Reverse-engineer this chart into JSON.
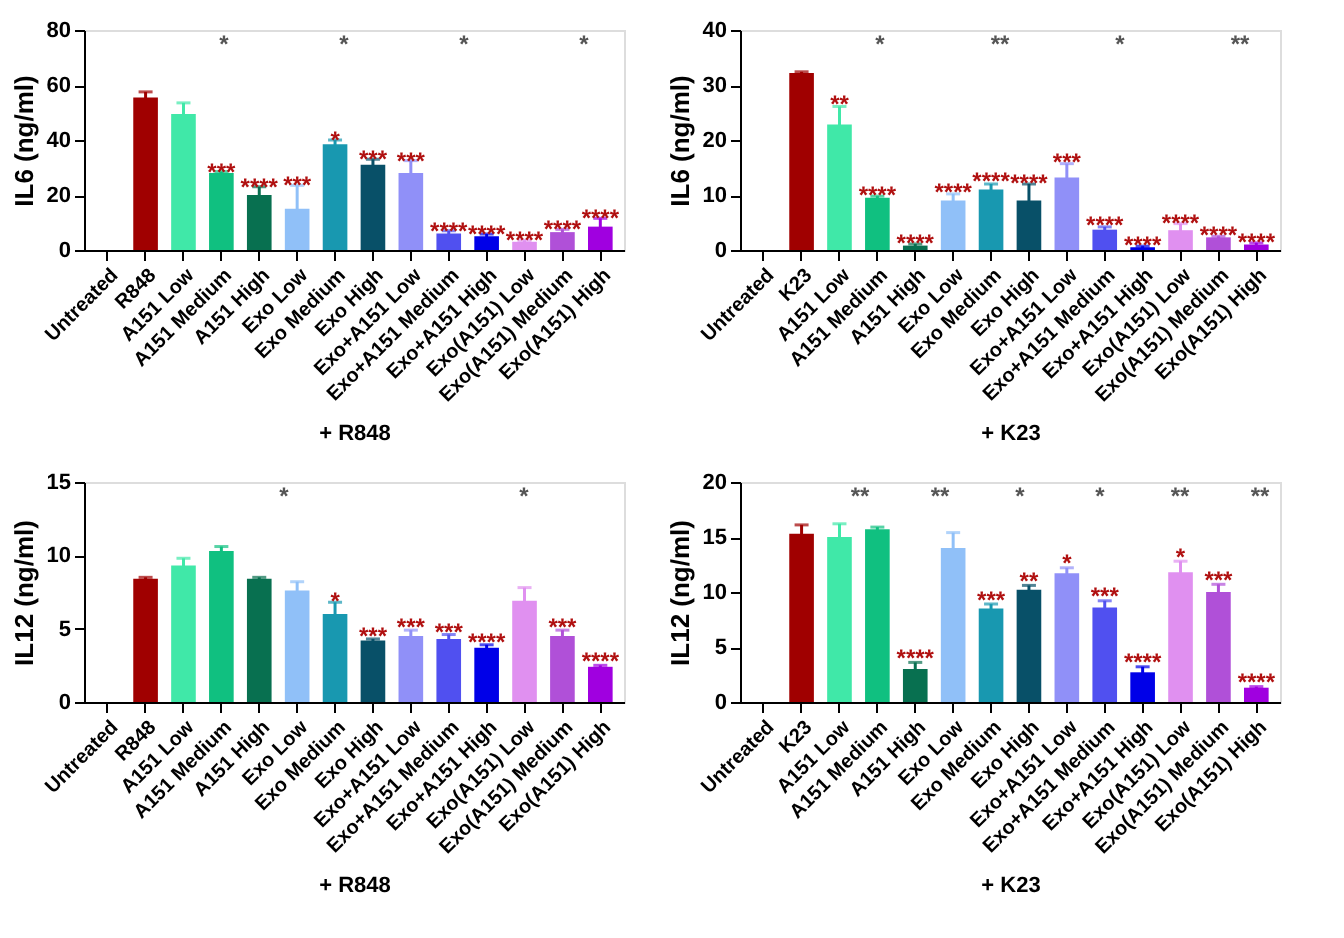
{
  "chart_data": [
    {
      "type": "bar",
      "xlabel": "+ R848",
      "ylabel": "IL6 (ng/ml)",
      "ylim": [
        0,
        80
      ],
      "yticks": [
        0,
        20,
        40,
        60,
        80
      ],
      "grid": false,
      "categories": [
        "Untreated",
        "R848",
        "A151 Low",
        "A151 Medium",
        "A151 High",
        "Exo Low",
        "Exo Medium",
        "Exo High",
        "Exo+A151 Low",
        "Exo+A151 Medium",
        "Exo+A151 High",
        "Exo(A151) Low",
        "Exo(A151) Medium",
        "Exo(A151) High"
      ],
      "values": [
        0,
        55.5,
        49.5,
        28,
        20,
        15,
        38.5,
        31,
        28,
        6,
        5,
        3,
        6.5,
        8.5
      ],
      "errors": [
        null,
        2,
        4,
        0.5,
        3,
        8.5,
        1.5,
        2,
        4.5,
        1,
        0.8,
        0.5,
        1,
        3
      ],
      "colors": [
        "#000000",
        "#a00000",
        "#40e8a8",
        "#10c080",
        "#087050",
        "#90c0f8",
        "#1898b0",
        "#085068",
        "#9090f8",
        "#5050f0",
        "#0000e8",
        "#e090f0",
        "#b050d8",
        "#a000e0"
      ],
      "annotations": [
        {
          "text": "***",
          "x": "A151 Medium",
          "y": 28.5
        },
        {
          "text": "****",
          "x": "A151 High",
          "y": 23
        },
        {
          "text": "***",
          "x": "Exo Low",
          "y": 23.5
        },
        {
          "text": "*",
          "x": "Exo Medium",
          "y": 40
        },
        {
          "text": "***",
          "x": "Exo High",
          "y": 33
        },
        {
          "text": "***",
          "x": "Exo+A151 Low",
          "y": 32.5
        },
        {
          "text": "****",
          "x": "Exo+A151 Medium",
          "y": 7
        },
        {
          "text": "****",
          "x": "Exo+A151 High",
          "y": 5.8
        },
        {
          "text": "****",
          "x": "Exo(A151) Low",
          "y": 3.5
        },
        {
          "text": "****",
          "x": "Exo(A151) Medium",
          "y": 7.5
        },
        {
          "text": "****",
          "x": "Exo(A151) High",
          "y": 11.5
        },
        "*",
        "*",
        "*",
        "*"
      ]
    },
    {
      "type": "bar",
      "xlabel": "+ K23",
      "ylabel": "IL6 (ng/ml)",
      "ylim": [
        0,
        40
      ],
      "yticks": [
        0,
        10,
        20,
        30,
        40
      ],
      "grid": false,
      "categories": [
        "Untreated",
        "K23",
        "A151 Low",
        "A151 Medium",
        "A151 High",
        "Exo Low",
        "Exo Medium",
        "Exo High",
        "Exo+A151 Low",
        "Exo+A151 Medium",
        "Exo+A151 High",
        "Exo(A151) Low",
        "Exo(A151) Medium",
        "Exo(A151) High"
      ],
      "values": [
        0,
        32.2,
        22.8,
        9.5,
        0.8,
        9,
        11,
        9,
        13.2,
        3.7,
        0.5,
        3.6,
        2.3,
        1
      ],
      "errors": [
        null,
        0.2,
        3.3,
        0.3,
        0.3,
        1.2,
        1,
        3,
        2.5,
        0.5,
        0.2,
        1.2,
        0.2,
        0.3
      ],
      "colors": [
        "#000000",
        "#a00000",
        "#40e8a8",
        "#10c080",
        "#087050",
        "#90c0f8",
        "#1898b0",
        "#085068",
        "#9090f8",
        "#5050f0",
        "#0000e8",
        "#e090f0",
        "#b050d8",
        "#a000e0"
      ],
      "annotations": [
        {
          "text": "**",
          "x": "A151 Low",
          "y": 26.5
        },
        {
          "text": "****",
          "x": "A151 Medium",
          "y": 10
        },
        {
          "text": "****",
          "x": "A151 High",
          "y": 1.3
        },
        {
          "text": "****",
          "x": "Exo Low",
          "y": 10.5
        },
        {
          "text": "****",
          "x": "Exo Medium",
          "y": 12.5
        },
        {
          "text": "****",
          "x": "Exo High",
          "y": 12.2
        },
        {
          "text": "***",
          "x": "Exo+A151 Low",
          "y": 16
        },
        {
          "text": "****",
          "x": "Exo+A151 Medium",
          "y": 4.5
        },
        {
          "text": "****",
          "x": "Exo+A151 High",
          "y": 1
        },
        {
          "text": "****",
          "x": "Exo(A151) Low",
          "y": 5
        },
        {
          "text": "****",
          "x": "Exo(A151) Medium",
          "y": 2.8
        },
        {
          "text": "****",
          "x": "Exo(A151) High",
          "y": 1.5
        },
        "*",
        "**",
        "*",
        "**"
      ]
    },
    {
      "type": "bar",
      "xlabel": "+ R848",
      "ylabel": "IL12 (ng/ml)",
      "ylim": [
        0,
        15
      ],
      "yticks": [
        0,
        5,
        10,
        15
      ],
      "grid": false,
      "categories": [
        "Untreated",
        "R848",
        "A151 Low",
        "A151 Medium",
        "A151 High",
        "Exo Low",
        "Exo Medium",
        "Exo High",
        "Exo+A151 Low",
        "Exo+A151 Medium",
        "Exo+A151 High",
        "Exo(A151) Low",
        "Exo(A151) Medium",
        "Exo(A151) High"
      ],
      "values": [
        0,
        8.4,
        9.3,
        10.3,
        8.4,
        7.6,
        6.0,
        4.2,
        4.5,
        4.3,
        3.7,
        6.9,
        4.5,
        2.4
      ],
      "errors": [
        null,
        0.1,
        0.5,
        0.3,
        0.1,
        0.6,
        0.8,
        0.1,
        0.4,
        0.3,
        0.2,
        0.9,
        0.4,
        0.1
      ],
      "colors": [
        "#000000",
        "#a00000",
        "#40e8a8",
        "#10c080",
        "#087050",
        "#90c0f8",
        "#1898b0",
        "#085068",
        "#9090f8",
        "#5050f0",
        "#0000e8",
        "#e090f0",
        "#b050d8",
        "#a000e0"
      ],
      "annotations": [
        {
          "text": "*",
          "x": "Exo Medium",
          "y": 6.9
        },
        {
          "text": "***",
          "x": "Exo High",
          "y": 4.5
        },
        {
          "text": "***",
          "x": "Exo+A151 Low",
          "y": 5.1
        },
        {
          "text": "***",
          "x": "Exo+A151 Medium",
          "y": 4.8
        },
        {
          "text": "****",
          "x": "Exo+A151 High",
          "y": 4.1
        },
        {
          "text": "***",
          "x": "Exo(A151) Medium",
          "y": 5.1
        },
        {
          "text": "****",
          "x": "Exo(A151) High",
          "y": 2.8
        },
        "*",
        "*"
      ]
    },
    {
      "type": "bar",
      "xlabel": "+ K23",
      "ylabel": "IL12 (ng/ml)",
      "ylim": [
        0,
        20
      ],
      "yticks": [
        0,
        5,
        10,
        15,
        20
      ],
      "grid": false,
      "categories": [
        "Untreated",
        "K23",
        "A151 Low",
        "A151 Medium",
        "A151 High",
        "Exo Low",
        "Exo Medium",
        "Exo High",
        "Exo+A151 Low",
        "Exo+A151 Medium",
        "Exo+A151 High",
        "Exo(A151) Low",
        "Exo(A151) Medium",
        "Exo(A151) High"
      ],
      "values": [
        0,
        15.3,
        15,
        15.7,
        3,
        14,
        8.5,
        10.2,
        11.7,
        8.6,
        2.7,
        11.8,
        10,
        1.3
      ],
      "errors": [
        null,
        0.8,
        1.2,
        0.2,
        0.6,
        1.4,
        0.4,
        0.4,
        0.5,
        0.6,
        0.5,
        1,
        0.7,
        0.1
      ],
      "colors": [
        "#000000",
        "#a00000",
        "#40e8a8",
        "#10c080",
        "#087050",
        "#90c0f8",
        "#1898b0",
        "#085068",
        "#9090f8",
        "#5050f0",
        "#0000e8",
        "#e090f0",
        "#b050d8",
        "#a000e0"
      ],
      "annotations": [
        {
          "text": "****",
          "x": "A151 High",
          "y": 4
        },
        {
          "text": "***",
          "x": "Exo Medium",
          "y": 9.3
        },
        {
          "text": "**",
          "x": "Exo High",
          "y": 11
        },
        {
          "text": "*",
          "x": "Exo+A151 Low",
          "y": 12.6
        },
        {
          "text": "***",
          "x": "Exo+A151 Medium",
          "y": 9.6
        },
        {
          "text": "****",
          "x": "Exo+A151 High",
          "y": 3.6
        },
        {
          "text": "*",
          "x": "Exo(A151) Low",
          "y": 13.2
        },
        {
          "text": "***",
          "x": "Exo(A151) Medium",
          "y": 11.1
        },
        {
          "text": "****",
          "x": "Exo(A151) High",
          "y": 1.8
        },
        "**",
        "**",
        "*",
        "*",
        "**",
        "**"
      ]
    }
  ]
}
